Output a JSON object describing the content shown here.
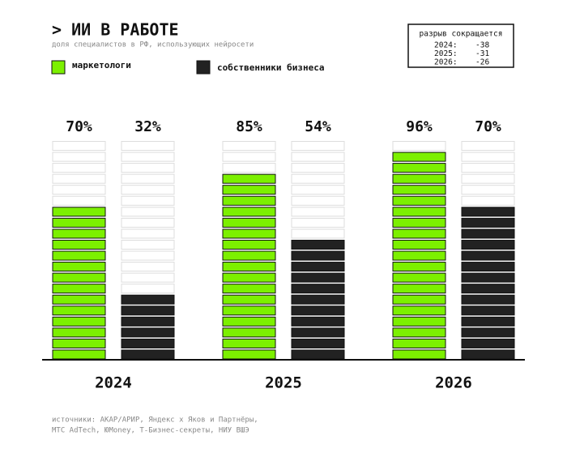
{
  "chart_data": {
    "type": "block-bar",
    "title": "> ИИ В РАБОТЕ",
    "subtitle": "доля специалистов в РФ, использующих нейросети",
    "categories": [
      "2024",
      "2025",
      "2026"
    ],
    "series": [
      {
        "name": "маркетологи",
        "color": "#7cf000",
        "values": [
          70,
          85,
          96
        ],
        "value_labels": [
          "70%",
          "85%",
          "96%"
        ]
      },
      {
        "name": "собственники бизнеса",
        "color": "#222222",
        "values": [
          32,
          54,
          70
        ],
        "value_labels": [
          "32%",
          "54%",
          "70%"
        ]
      }
    ],
    "ylim": [
      0,
      100
    ],
    "segments": 20,
    "gap_box": {
      "title": "разрыв сокращается",
      "rows": [
        {
          "label": "2024:",
          "value": -38
        },
        {
          "label": "2025:",
          "value": -31
        },
        {
          "label": "2026:",
          "value": -26
        }
      ]
    },
    "sources": [
      "источники: АКАР/АРИР, Яндекс x Яков и Партнёры,",
      "МТС AdTech, ЮMoney, Т-Бизнес-секреты, НИУ ВШЭ"
    ]
  }
}
